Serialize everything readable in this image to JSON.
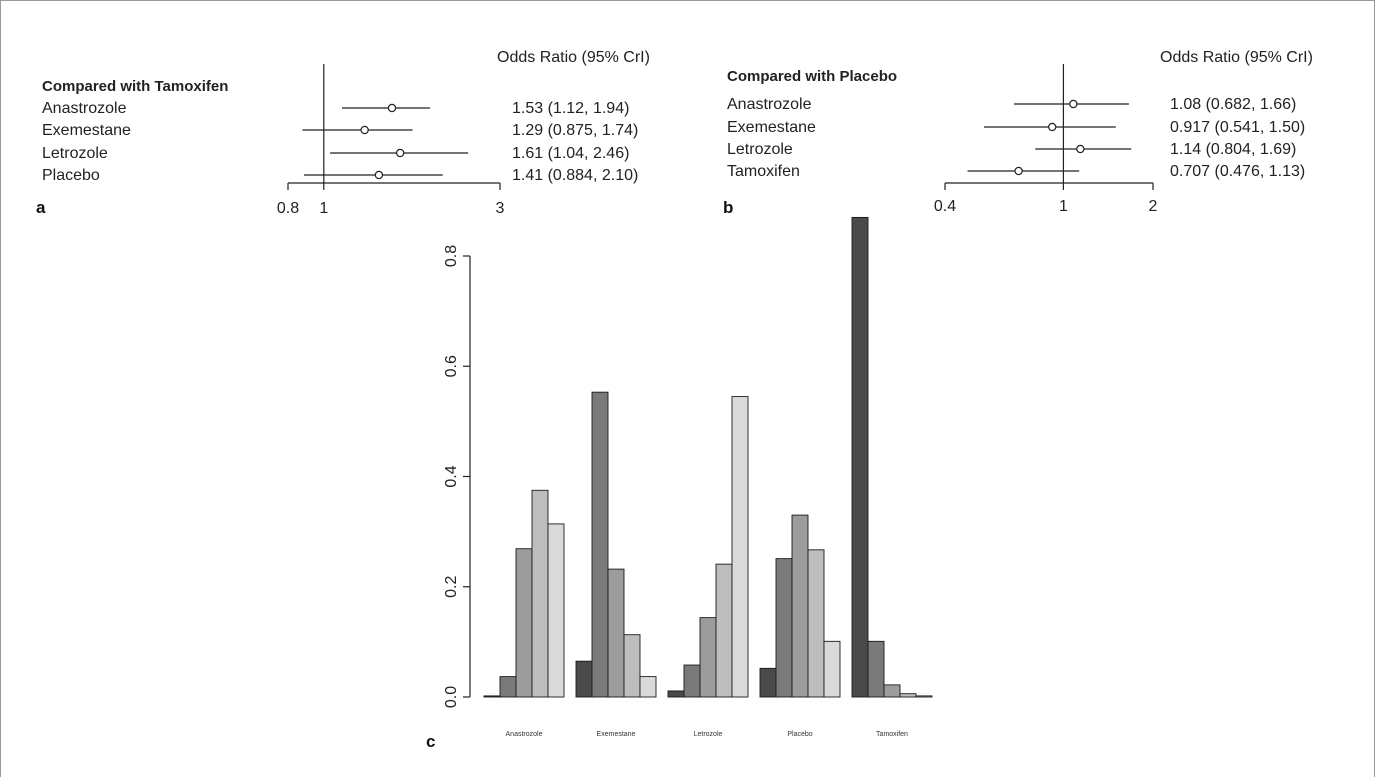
{
  "chart_data": [
    {
      "type": "forest",
      "panel": "a",
      "heading": "Odds Ratio (95% CrI)",
      "group_title": "Compared with Tamoxifen",
      "reference": 1,
      "xlim": [
        0.8,
        3
      ],
      "ticks": [
        0.8,
        1,
        3
      ],
      "tick_labels": [
        "0.8",
        "1",
        "3"
      ],
      "rows": [
        {
          "label": "Anastrozole",
          "or": 1.53,
          "low": 1.12,
          "high": 1.94,
          "text": "1.53 (1.12, 1.94)"
        },
        {
          "label": "Exemestane",
          "or": 1.29,
          "low": 0.875,
          "high": 1.74,
          "text": "1.29 (0.875, 1.74)"
        },
        {
          "label": "Letrozole",
          "or": 1.61,
          "low": 1.04,
          "high": 2.46,
          "text": "1.61 (1.04, 2.46)"
        },
        {
          "label": "Placebo",
          "or": 1.41,
          "low": 0.884,
          "high": 2.1,
          "text": "1.41 (0.884, 2.10)"
        }
      ]
    },
    {
      "type": "forest",
      "panel": "b",
      "heading": "Odds Ratio (95% CrI)",
      "group_title": "Compared with Placebo",
      "reference": 1,
      "xlim": [
        0.4,
        2
      ],
      "ticks": [
        0.4,
        1,
        2
      ],
      "tick_labels": [
        "0.4",
        "1",
        "2"
      ],
      "rows": [
        {
          "label": "Anastrozole",
          "or": 1.08,
          "low": 0.682,
          "high": 1.66,
          "text": "1.08 (0.682, 1.66)"
        },
        {
          "label": "Exemestane",
          "or": 0.917,
          "low": 0.541,
          "high": 1.5,
          "text": "0.917 (0.541, 1.50)"
        },
        {
          "label": "Letrozole",
          "or": 1.14,
          "low": 0.804,
          "high": 1.69,
          "text": "1.14 (0.804, 1.69)"
        },
        {
          "label": "Tamoxifen",
          "or": 0.707,
          "low": 0.476,
          "high": 1.13,
          "text": "0.707 (0.476, 1.13)"
        }
      ]
    },
    {
      "type": "bar",
      "panel": "c",
      "categories": [
        "Anastrozole",
        "Exemestane",
        "Letrozole",
        "Placebo",
        "Tamoxifen"
      ],
      "ylim": [
        0,
        0.88
      ],
      "yticks": [
        0.0,
        0.2,
        0.4,
        0.6,
        0.8
      ],
      "ytick_labels": [
        "0.0",
        "0.2",
        "0.4",
        "0.6",
        "0.8"
      ],
      "shades": [
        "#4a4a4a",
        "#7a7a7a",
        "#9c9c9c",
        "#bdbdbd",
        "#dadada"
      ],
      "groups": [
        {
          "category": "Anastrozole",
          "values": [
            0.002,
            0.037,
            0.269,
            0.375,
            0.314
          ]
        },
        {
          "category": "Exemestane",
          "values": [
            0.065,
            0.553,
            0.232,
            0.113,
            0.037
          ]
        },
        {
          "category": "Letrozole",
          "values": [
            0.011,
            0.058,
            0.144,
            0.241,
            0.545
          ]
        },
        {
          "category": "Placebo",
          "values": [
            0.052,
            0.251,
            0.33,
            0.267,
            0.101
          ]
        },
        {
          "category": "Tamoxifen",
          "values": [
            0.87,
            0.101,
            0.022,
            0.006,
            0.002
          ]
        }
      ]
    }
  ]
}
